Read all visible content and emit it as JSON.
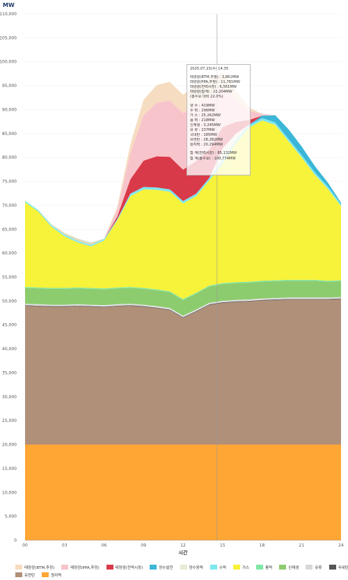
{
  "chart_data": {
    "type": "area",
    "unit_label": "MW",
    "xlabel": "시간",
    "x_ticks": [
      "00",
      "03",
      "06",
      "09",
      "12",
      "15",
      "18",
      "21",
      "24"
    ],
    "x_range": [
      0,
      24
    ],
    "ylim": [
      0,
      110000
    ],
    "y_ticks": [
      0,
      5000,
      10000,
      15000,
      20000,
      25000,
      30000,
      35000,
      40000,
      45000,
      50000,
      55000,
      60000,
      65000,
      70000,
      75000,
      80000,
      85000,
      90000,
      95000,
      100000,
      105000,
      110000
    ],
    "y_tick_labels": [
      "0",
      "5,000",
      "10,000",
      "15,000",
      "20,000",
      "25,000",
      "30,000",
      "35,000",
      "40,000",
      "45,000",
      "50,000",
      "55,000",
      "60,000",
      "65,000",
      "70,000",
      "75,000",
      "80,000",
      "85,000",
      "90,000",
      "95,000",
      "100,000",
      "105,000",
      "110,000"
    ],
    "grid": "horizontal-dashed",
    "legend_position": "bottom",
    "x": [
      0,
      1,
      2,
      3,
      4,
      5,
      6,
      7,
      8,
      9,
      10,
      11,
      12,
      13,
      14,
      15,
      16,
      17,
      18,
      19,
      20,
      21,
      22,
      23,
      24
    ],
    "series": [
      {
        "name": "원자력",
        "color": "#ffa634",
        "values": [
          20000,
          20000,
          20000,
          20000,
          20000,
          20000,
          20000,
          20000,
          20000,
          20000,
          20000,
          20000,
          20000,
          20000,
          20000,
          20000,
          20000,
          20000,
          20000,
          20000,
          20000,
          20000,
          20000,
          20000,
          20000
        ]
      },
      {
        "name": "유연탄",
        "color": "#b09079",
        "values": [
          29000,
          28900,
          28800,
          28800,
          28900,
          28800,
          28700,
          28900,
          29000,
          28800,
          28500,
          28100,
          26500,
          27800,
          29200,
          29600,
          29800,
          29900,
          30100,
          30200,
          30300,
          30300,
          30300,
          30300,
          30400
        ]
      },
      {
        "name": "국내탄",
        "color": "#555555",
        "values": [
          200,
          200,
          200,
          200,
          200,
          200,
          200,
          200,
          200,
          200,
          200,
          200,
          200,
          200,
          200,
          200,
          200,
          200,
          200,
          200,
          200,
          200,
          200,
          200,
          200
        ]
      },
      {
        "name": "유류",
        "color": "#d8d8d8",
        "values": [
          237,
          237,
          237,
          237,
          237,
          237,
          237,
          237,
          237,
          237,
          237,
          237,
          237,
          237,
          237,
          237,
          237,
          237,
          237,
          237,
          237,
          237,
          237,
          237,
          237
        ]
      },
      {
        "name": "신재생",
        "color": "#8dcc6e",
        "values": [
          3300,
          3300,
          3300,
          3300,
          3300,
          3300,
          3300,
          3300,
          3300,
          3300,
          3300,
          3300,
          3245,
          3300,
          3400,
          3500,
          3500,
          3500,
          3500,
          3500,
          3500,
          3500,
          3500,
          3300,
          3300
        ]
      },
      {
        "name": "풍력",
        "color": "#7ee7a4",
        "values": [
          200,
          200,
          200,
          200,
          200,
          200,
          200,
          200,
          200,
          200,
          200,
          200,
          218,
          200,
          200,
          200,
          200,
          200,
          200,
          200,
          200,
          200,
          200,
          200,
          200
        ]
      },
      {
        "name": "가스",
        "color": "#f7f23a",
        "values": [
          17700,
          15900,
          12800,
          10800,
          9400,
          8700,
          10000,
          14000,
          19000,
          20600,
          20800,
          20800,
          20000,
          20200,
          22000,
          25000,
          29000,
          32200,
          33500,
          32500,
          29000,
          25600,
          22000,
          19200,
          15500
        ]
      },
      {
        "name": "수력",
        "color": "#7de8f0",
        "values": [
          300,
          300,
          300,
          300,
          300,
          300,
          300,
          300,
          500,
          500,
          500,
          500,
          500,
          500,
          500,
          500,
          500,
          500,
          500,
          500,
          500,
          500,
          500,
          500,
          400
        ]
      },
      {
        "name": "양수발전",
        "color": "#3bb6d6",
        "values": [
          0,
          0,
          0,
          0,
          0,
          0,
          0,
          0,
          0,
          0,
          0,
          0,
          0,
          0,
          0,
          0,
          0,
          100,
          500,
          1500,
          2000,
          1800,
          1300,
          800,
          300
        ]
      },
      {
        "name": "양수동력",
        "color": "#e9e9d6",
        "values": [
          0,
          0,
          0,
          0,
          0,
          0,
          0,
          0,
          0,
          0,
          0,
          0,
          0,
          0,
          0,
          2600,
          1500,
          0,
          0,
          0,
          0,
          0,
          0,
          0,
          0
        ]
      },
      {
        "name": "태양광(전력시장)",
        "color": "#d93a49",
        "values": [
          0,
          0,
          0,
          0,
          0,
          0,
          0,
          500,
          3000,
          5500,
          6500,
          6800,
          6561,
          6800,
          6000,
          4500,
          2500,
          1000,
          0,
          0,
          0,
          0,
          0,
          0,
          0
        ]
      },
      {
        "name": "태양광(PPA,추정)",
        "color": "#f8c4cb",
        "values": [
          0,
          0,
          0,
          0,
          0,
          0,
          0,
          1500,
          5500,
          9500,
          11200,
          11800,
          11781,
          11800,
          11000,
          8500,
          5000,
          2000,
          300,
          0,
          0,
          0,
          0,
          0,
          0
        ]
      },
      {
        "name": "태양광(BTM,추정)",
        "color": "#f6dcc0",
        "values": [
          0,
          0,
          0,
          0,
          0,
          0,
          0,
          500,
          1800,
          3200,
          3700,
          3860,
          3861,
          3900,
          3600,
          2900,
          1700,
          600,
          100,
          0,
          0,
          0,
          0,
          0,
          0
        ]
      },
      {
        "name": "양수",
        "color": "#dddcbe",
        "values": [
          0,
          0,
          200,
          400,
          500,
          500,
          100,
          0,
          0,
          0,
          0,
          0,
          0,
          0,
          0,
          0,
          0,
          0,
          0,
          0,
          0,
          0,
          0,
          0,
          0
        ]
      }
    ]
  },
  "tooltip": {
    "datetime": "2025.07.23(수) 14:35",
    "solar_lines": [
      "태양광(BTM,추정) : 3,861MW",
      "태양광(PPA,추정) : 11,781MW",
      "태양광(전력시장) : 6,561MW",
      "태양광(합계) : 22,204MW",
      "(총수요 대비 22.0%)"
    ],
    "source_lines": [
      "양 수 : 419MW",
      "수 력 : 296MW",
      "가 스 : 25,262MW",
      "풍 력 : 218MW",
      "신재생 : 3,245MW",
      "유 류 : 237MW",
      "국내탄 : 185MW",
      "유연탄 : 28,282MW",
      "원자력 : 20,294MW"
    ],
    "total_lines": [
      "합 계(전력시장) : 85,132MW",
      "합 계(총수요) : 100,774MW"
    ]
  },
  "legend": [
    [
      {
        "label": "태양광(BTM,추정)",
        "color": "#f6dcc0"
      },
      {
        "label": "태양광(PPA,추정)",
        "color": "#f8c4cb"
      },
      {
        "label": "태양광(전력시장)",
        "color": "#d93a49"
      },
      {
        "label": "양수발전",
        "color": "#3bb6d6"
      },
      {
        "label": "양수동력",
        "color": "#e9e9d6"
      },
      {
        "label": "수력",
        "color": "#7de8f0"
      },
      {
        "label": "가스",
        "color": "#f7f23a"
      },
      {
        "label": "풍력",
        "color": "#7ee7a4"
      },
      {
        "label": "신재생",
        "color": "#8dcc6e"
      },
      {
        "label": "유류",
        "color": "#d8d8d8"
      },
      {
        "label": "국내탄",
        "color": "#555555"
      }
    ],
    [
      {
        "label": "유연탄",
        "color": "#b09079"
      },
      {
        "label": "원자력",
        "color": "#ffa634"
      }
    ]
  ]
}
